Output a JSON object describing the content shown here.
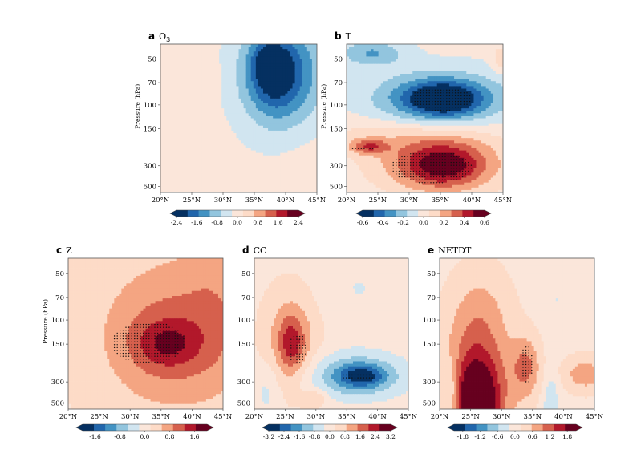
{
  "figure": {
    "y_axis_label": "Pressure (hPa)",
    "y_ticks": [
      "50",
      "70",
      "100",
      "150",
      "300",
      "500"
    ],
    "x_ticks": [
      "20°N",
      "25°N",
      "30°N",
      "35°N",
      "40°N",
      "45°N"
    ]
  },
  "palette": {
    "levels": [
      "#053061",
      "#2166ac",
      "#4393c3",
      "#92c5de",
      "#d1e5f0",
      "#fbe6da",
      "#fddbc7",
      "#f4a582",
      "#d6604d",
      "#b2182b",
      "#67001f"
    ],
    "background": "#fbe9e0"
  },
  "chart_data": [
    {
      "type": "heatmap",
      "panel": "a",
      "title": "O",
      "title_sub": "3",
      "x_range": [
        20,
        45
      ],
      "y_levels_hPa": [
        50,
        70,
        100,
        150,
        300,
        500
      ],
      "colorbar_ticks": [
        "-2.4",
        "-1.6",
        "-0.8",
        "0.0",
        "0.8",
        "1.6",
        "2.4"
      ],
      "colorbar_range": [
        -2.4,
        2.4
      ],
      "features": [
        {
          "kind": "blob",
          "lat": 39.5,
          "level": 0.22,
          "rx": 0.3,
          "ry": 0.42,
          "value": -1.2
        },
        {
          "kind": "blob",
          "lat": 38.8,
          "level": 0.16,
          "rx": 0.21,
          "ry": 0.29,
          "value": -0.75
        },
        {
          "kind": "blob",
          "lat": 38.0,
          "level": 0.2,
          "rx": 0.14,
          "ry": 0.22,
          "value": -0.8
        },
        {
          "kind": "blob",
          "lat": 37.0,
          "level": 0.12,
          "rx": 0.08,
          "ry": 0.12,
          "value": -0.7
        },
        {
          "kind": "blob",
          "lat": 27.5,
          "level": 0.25,
          "rx": 0.12,
          "ry": 0.12,
          "value": 0.15
        },
        {
          "kind": "blob",
          "lat": 43.0,
          "level": 0.75,
          "rx": 0.22,
          "ry": 0.3,
          "value": 0.12
        }
      ],
      "base_value": -0.02
    },
    {
      "type": "heatmap",
      "panel": "b",
      "title": "T",
      "title_sub": "",
      "x_range": [
        20,
        45
      ],
      "y_levels_hPa": [
        50,
        70,
        100,
        150,
        300,
        500
      ],
      "colorbar_ticks": [
        "-0.6",
        "-0.4",
        "-0.2",
        "0.0",
        "0.2",
        "0.4",
        "0.6"
      ],
      "colorbar_range": [
        -0.6,
        0.6
      ],
      "features": [
        {
          "kind": "blob",
          "lat": 35.0,
          "level": 0.37,
          "rx": 0.4,
          "ry": 0.17,
          "value": -0.45
        },
        {
          "kind": "blob",
          "lat": 35.5,
          "level": 0.37,
          "rx": 0.2,
          "ry": 0.1,
          "value": -0.35
        },
        {
          "kind": "blob",
          "lat": 24.0,
          "level": 0.06,
          "rx": 0.2,
          "ry": 0.09,
          "value": -0.25
        },
        {
          "kind": "blob",
          "lat": 35.0,
          "level": 0.8,
          "rx": 0.45,
          "ry": 0.22,
          "value": 0.3
        },
        {
          "kind": "blob",
          "lat": 35.5,
          "level": 0.82,
          "rx": 0.25,
          "ry": 0.14,
          "value": 0.35
        },
        {
          "kind": "blob",
          "lat": 23.5,
          "level": 0.69,
          "rx": 0.12,
          "ry": 0.05,
          "value": 0.3
        },
        {
          "kind": "blob",
          "lat": 26.0,
          "level": 0.62,
          "rx": 0.6,
          "ry": 0.12,
          "value": 0.1
        },
        {
          "kind": "blob",
          "lat": 44.5,
          "level": 0.1,
          "rx": 0.05,
          "ry": 0.1,
          "value": 0.15
        }
      ],
      "base_value": -0.03,
      "stipple": [
        {
          "lat": 35.0,
          "level": 0.37,
          "rx": 0.2,
          "ry": 0.08
        },
        {
          "lat": 33.5,
          "level": 0.83,
          "rx": 0.26,
          "ry": 0.11
        },
        {
          "lat": 22.5,
          "level": 0.7,
          "rx": 0.08,
          "ry": 0.015
        }
      ]
    },
    {
      "type": "heatmap",
      "panel": "c",
      "title": "Z",
      "title_sub": "",
      "x_range": [
        20,
        45
      ],
      "y_levels_hPa": [
        50,
        70,
        100,
        150,
        300,
        500
      ],
      "colorbar_ticks": [
        "-1.6",
        "-0.8",
        "0.0",
        "0.8",
        "1.6"
      ],
      "colorbar_range": [
        -2.0,
        2.0
      ],
      "features": [
        {
          "kind": "blob",
          "lat": 37.5,
          "level": 0.45,
          "rx": 0.62,
          "ry": 0.75,
          "value": 0.55
        },
        {
          "kind": "blob",
          "lat": 36.0,
          "level": 0.55,
          "rx": 0.35,
          "ry": 0.33,
          "value": 0.6
        },
        {
          "kind": "blob",
          "lat": 36.0,
          "level": 0.57,
          "rx": 0.18,
          "ry": 0.14,
          "value": 0.6
        },
        {
          "kind": "blob",
          "lat": 44.0,
          "level": 0.3,
          "rx": 0.2,
          "ry": 0.5,
          "value": 0.3
        }
      ],
      "base_value": 0.08,
      "stipple": [
        {
          "lat": 33.0,
          "level": 0.56,
          "rx": 0.24,
          "ry": 0.14
        }
      ]
    },
    {
      "type": "heatmap",
      "panel": "d",
      "title": "CC",
      "title_sub": "",
      "x_range": [
        20,
        45
      ],
      "y_levels_hPa": [
        50,
        70,
        100,
        150,
        300,
        500
      ],
      "colorbar_ticks": [
        "-3.2",
        "-2.4",
        "-1.6",
        "-0.8",
        "0.0",
        "0.8",
        "1.6",
        "2.4",
        "3.2"
      ],
      "colorbar_range": [
        -3.2,
        3.2
      ],
      "features": [
        {
          "kind": "blob",
          "lat": 26.0,
          "level": 0.55,
          "rx": 0.18,
          "ry": 0.34,
          "value": 1.2
        },
        {
          "kind": "blob",
          "lat": 26.0,
          "level": 0.57,
          "rx": 0.08,
          "ry": 0.18,
          "value": 1.3
        },
        {
          "kind": "blob",
          "lat": 36.5,
          "level": 0.78,
          "rx": 0.32,
          "ry": 0.15,
          "value": -1.8
        },
        {
          "kind": "blob",
          "lat": 37.5,
          "level": 0.78,
          "rx": 0.14,
          "ry": 0.07,
          "value": -1.6
        },
        {
          "kind": "blob",
          "lat": 30.0,
          "level": 0.93,
          "rx": 0.08,
          "ry": 0.06,
          "value": 0.8
        },
        {
          "kind": "blob",
          "lat": 22.0,
          "level": 0.88,
          "rx": 0.08,
          "ry": 0.2,
          "value": -0.6
        },
        {
          "kind": "blob",
          "lat": 37.0,
          "level": 0.2,
          "rx": 0.25,
          "ry": 0.25,
          "value": -0.4
        }
      ],
      "base_value": 0.1,
      "stipple": [
        {
          "lat": 27.0,
          "level": 0.6,
          "rx": 0.06,
          "ry": 0.1
        },
        {
          "lat": 37.0,
          "level": 0.78,
          "rx": 0.12,
          "ry": 0.025
        }
      ]
    },
    {
      "type": "heatmap",
      "panel": "e",
      "title": "NETDT",
      "title_sub": "",
      "x_range": [
        20,
        45
      ],
      "y_levels_hPa": [
        50,
        70,
        100,
        150,
        300,
        500
      ],
      "colorbar_ticks": [
        "-1.8",
        "-1.2",
        "-0.6",
        "0.0",
        "0.6",
        "1.2",
        "1.8"
      ],
      "colorbar_range": [
        -2.1,
        2.1
      ],
      "features": [
        {
          "kind": "blob",
          "lat": 26.0,
          "level": 0.88,
          "rx": 0.22,
          "ry": 0.55,
          "value": 1.6
        },
        {
          "kind": "blob",
          "lat": 26.0,
          "level": 0.95,
          "rx": 0.12,
          "ry": 0.22,
          "value": 1.3
        },
        {
          "kind": "blob",
          "lat": 34.0,
          "level": 0.72,
          "rx": 0.09,
          "ry": 0.2,
          "value": 0.9
        },
        {
          "kind": "blob",
          "lat": 43.5,
          "level": 0.77,
          "rx": 0.15,
          "ry": 0.12,
          "value": 0.75
        },
        {
          "kind": "blob",
          "lat": 22.0,
          "level": 0.9,
          "rx": 0.06,
          "ry": 0.25,
          "value": -0.7
        },
        {
          "kind": "blob",
          "lat": 38.0,
          "level": 0.95,
          "rx": 0.05,
          "ry": 0.2,
          "value": -0.6
        },
        {
          "kind": "blob",
          "lat": 27.0,
          "level": 0.28,
          "rx": 0.18,
          "ry": 0.25,
          "value": 0.2
        },
        {
          "kind": "blob",
          "lat": 39.0,
          "level": 0.28,
          "rx": 0.08,
          "ry": 0.05,
          "value": -0.25
        }
      ],
      "base_value": 0.05,
      "stipple": [
        {
          "lat": 34.0,
          "level": 0.7,
          "rx": 0.04,
          "ry": 0.13
        }
      ]
    }
  ]
}
